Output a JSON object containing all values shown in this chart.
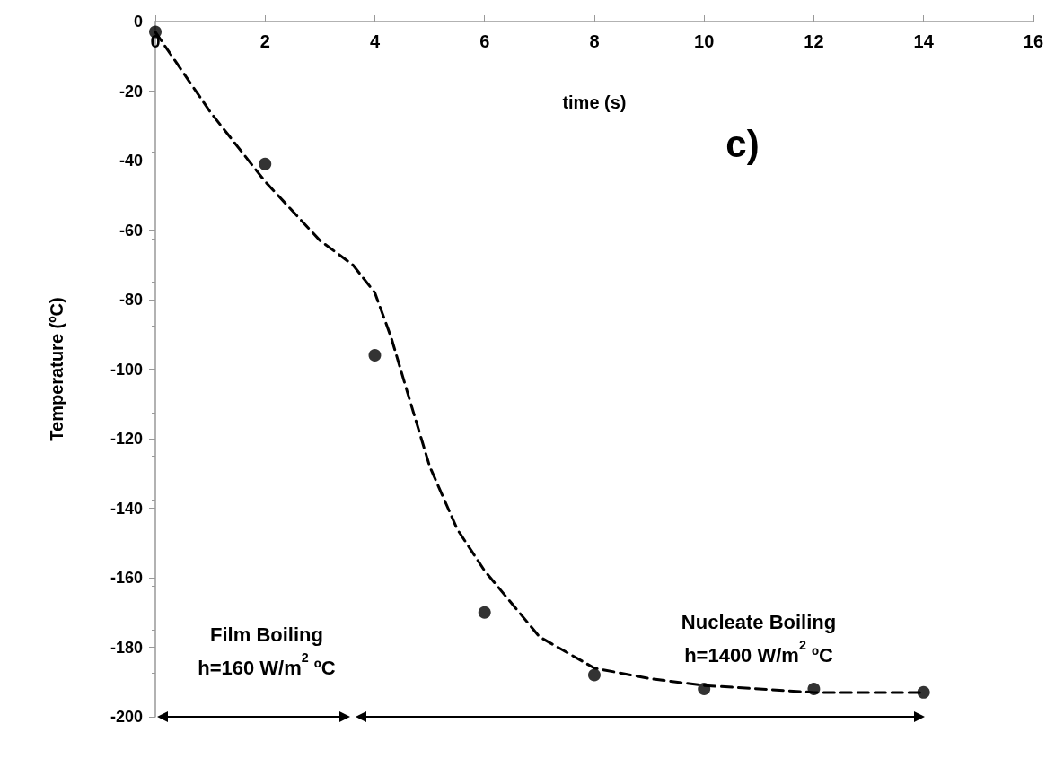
{
  "chart_data": {
    "type": "scatter",
    "xlabel": "time (s)",
    "ylabel": "Temperature (ºC)",
    "xlim": [
      0,
      16
    ],
    "xticks": [
      0,
      2,
      4,
      6,
      8,
      10,
      12,
      14,
      16
    ],
    "ylim": [
      -200,
      0
    ],
    "yticks": [
      -200,
      -180,
      -160,
      -140,
      -120,
      -100,
      -80,
      -60,
      -40,
      -20,
      0
    ],
    "series": [
      {
        "color": "#000000",
        "marker": "circle",
        "x": [
          0,
          2,
          4,
          6,
          8,
          10,
          12,
          14
        ],
        "values": [
          -3,
          -41,
          -96,
          -170,
          -188,
          -192,
          -192,
          -193
        ]
      },
      {
        "type": "line",
        "color": "#000000",
        "line_style": "dashed",
        "marker": "none",
        "x": [
          0,
          1,
          2,
          3,
          3.6,
          4,
          4.3,
          4.6,
          5,
          5.5,
          6,
          7,
          8,
          9,
          10,
          12,
          14
        ],
        "values": [
          -3,
          -26,
          -46,
          -63,
          -70,
          -78,
          -91,
          -107,
          -128,
          -146,
          -158,
          -177,
          -186,
          -189,
          -191,
          -193,
          -193
        ]
      }
    ],
    "annotations": [
      "c)",
      "Film Boiling\nh=160 W/m$^{2}$ ºC",
      "Nucleate Boiling\nh=1400 W/m$^{2}$ ºC"
    ]
  }
}
